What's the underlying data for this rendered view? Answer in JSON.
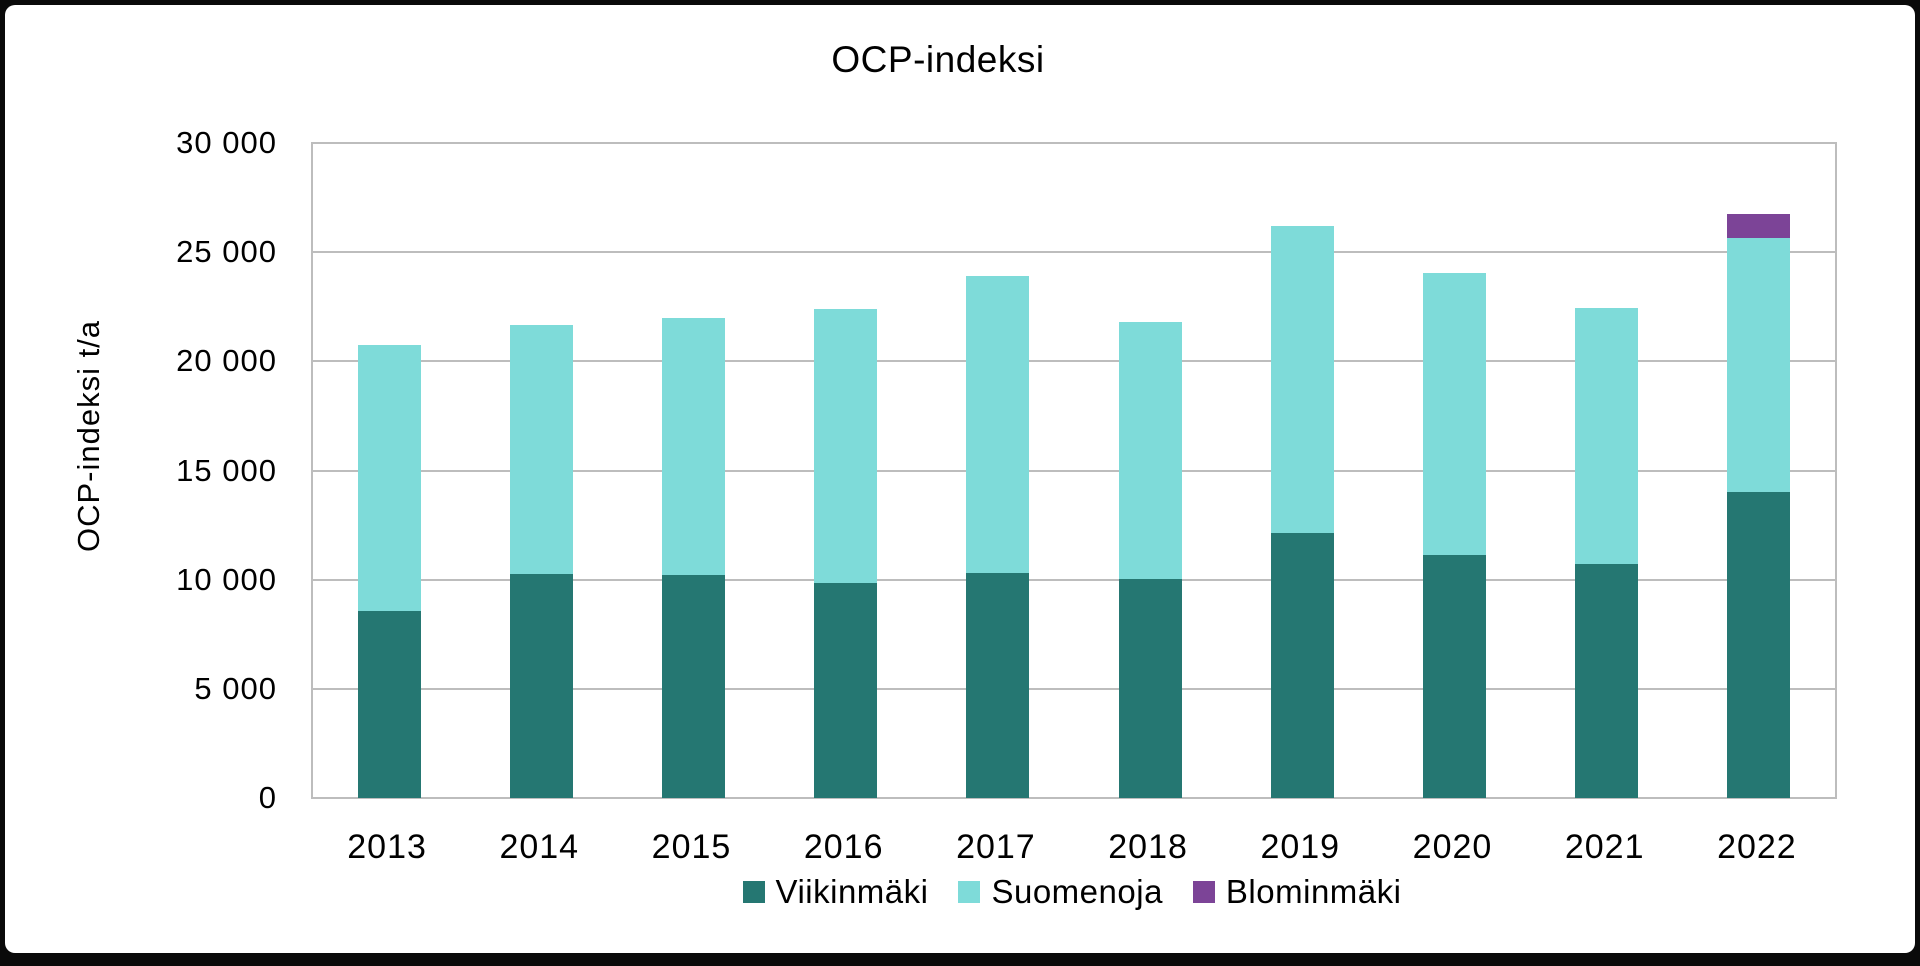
{
  "window": {
    "background_color": "#ffffff",
    "frame_color": "#0a0a0a",
    "gridline_color": "#bdbdbd",
    "text_color": "#000000"
  },
  "chart_data": {
    "type": "bar",
    "stacked": true,
    "title": "OCP-indeksi",
    "ylabel": "OCP-indeksi t/a",
    "xlabel": "",
    "categories": [
      "2013",
      "2014",
      "2015",
      "2016",
      "2017",
      "2018",
      "2019",
      "2020",
      "2021",
      "2022"
    ],
    "series": [
      {
        "name": "Viikinmäki",
        "color": "#257772",
        "values": [
          8550,
          10250,
          10200,
          9850,
          10300,
          10050,
          12150,
          11150,
          10700,
          14000
        ]
      },
      {
        "name": "Suomenoja",
        "color": "#7edbd9",
        "values": [
          12200,
          11400,
          11800,
          12550,
          13600,
          11750,
          14050,
          12900,
          11750,
          11650
        ]
      },
      {
        "name": "Blominmäki",
        "color": "#7c4497",
        "values": [
          0,
          0,
          0,
          0,
          0,
          0,
          0,
          0,
          0,
          1100
        ]
      }
    ],
    "ylim": [
      0,
      30000
    ],
    "ytick_interval": 5000,
    "ytick_labels": [
      "0",
      "5 000",
      "10 000",
      "15 000",
      "20 000",
      "25 000",
      "30 000"
    ],
    "grid": "horizontal",
    "legend_position": "bottom"
  }
}
